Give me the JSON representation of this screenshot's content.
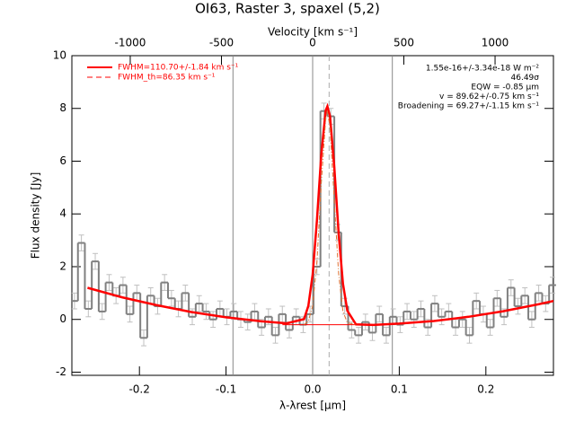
{
  "chart_data": {
    "type": "step",
    "title": "OI63, Raster 3, spaxel (5,2)",
    "top_axis_label": "Velocity [km s⁻¹]",
    "xlabel": "λ-λrest [µm]",
    "ylabel": "Flux density [Jy]",
    "x": [
      -0.275,
      -0.267,
      -0.259,
      -0.251,
      -0.243,
      -0.235,
      -0.227,
      -0.219,
      -0.211,
      -0.203,
      -0.195,
      -0.187,
      -0.179,
      -0.171,
      -0.163,
      -0.155,
      -0.147,
      -0.139,
      -0.131,
      -0.123,
      -0.115,
      -0.107,
      -0.099,
      -0.091,
      -0.083,
      -0.075,
      -0.067,
      -0.059,
      -0.051,
      -0.043,
      -0.035,
      -0.027,
      -0.019,
      -0.011,
      -0.003,
      0.005,
      0.013,
      0.021,
      0.029,
      0.037,
      0.045,
      0.053,
      0.061,
      0.069,
      0.077,
      0.085,
      0.093,
      0.101,
      0.109,
      0.117,
      0.125,
      0.133,
      0.141,
      0.149,
      0.157,
      0.165,
      0.173,
      0.181,
      0.189,
      0.197,
      0.205,
      0.213,
      0.221,
      0.229,
      0.237,
      0.245,
      0.253,
      0.261,
      0.269,
      0.277
    ],
    "values": [
      0.7,
      2.9,
      0.4,
      2.2,
      0.3,
      1.4,
      0.9,
      1.3,
      0.2,
      1.0,
      -0.7,
      0.9,
      0.5,
      1.4,
      0.8,
      0.4,
      1.0,
      0.1,
      0.6,
      0.3,
      0.0,
      0.4,
      0.1,
      0.3,
      0.0,
      -0.1,
      0.3,
      -0.3,
      0.1,
      -0.6,
      0.2,
      -0.4,
      0.1,
      -0.2,
      0.2,
      2.0,
      7.9,
      7.7,
      3.3,
      0.5,
      -0.4,
      -0.6,
      -0.1,
      -0.5,
      0.2,
      -0.6,
      0.1,
      -0.2,
      0.3,
      0.0,
      0.4,
      -0.3,
      0.6,
      0.1,
      0.3,
      -0.3,
      0.0,
      -0.6,
      0.7,
      0.2,
      -0.3,
      0.8,
      0.1,
      1.2,
      0.5,
      0.9,
      0.0,
      1.0,
      0.6,
      1.3
    ],
    "error": 0.3,
    "color": "#808080",
    "error_color": "#c0c0c0",
    "xlim": [
      -0.278,
      0.278
    ],
    "xticks": [
      -0.2,
      -0.1,
      {
        "value": 0,
        "label": "0.0"
      },
      0.1,
      0.2
    ],
    "ylim": [
      -2.12,
      10
    ],
    "yticks": [
      -2,
      0,
      2,
      4,
      6,
      8,
      10
    ],
    "top_xlim": [
      -1320,
      1320
    ],
    "top_xticks": [
      -1000,
      -500,
      0,
      500,
      1000
    ],
    "fit": {
      "name": "FWHM=110.70+/-1.84 km s⁻¹",
      "color": "#ff0000",
      "x": [
        -0.26,
        -0.22,
        -0.18,
        -0.14,
        -0.1,
        -0.06,
        -0.03,
        -0.01,
        -0.005,
        0.0,
        0.005,
        0.01,
        0.015,
        0.017,
        0.02,
        0.025,
        0.03,
        0.035,
        0.04,
        0.05,
        0.07,
        0.1,
        0.14,
        0.18,
        0.22,
        0.26,
        0.278
      ],
      "values": [
        1.2,
        0.84,
        0.54,
        0.28,
        0.08,
        -0.07,
        -0.15,
        0.01,
        0.51,
        1.7,
        3.77,
        6.25,
        7.92,
        8.08,
        7.71,
        5.77,
        3.28,
        1.36,
        0.33,
        -0.19,
        -0.21,
        -0.16,
        -0.06,
        0.1,
        0.31,
        0.57,
        0.7
      ]
    },
    "fit_th": {
      "name": "FWHM_th=86.35 km s⁻¹",
      "color": "#e07030",
      "x": [
        -0.01,
        -0.005,
        0.0,
        0.005,
        0.01,
        0.015,
        0.017,
        0.02,
        0.025,
        0.03,
        0.035,
        0.04,
        0.05
      ],
      "values": [
        -0.2,
        -0.06,
        0.51,
        2.2,
        5.15,
        7.62,
        7.9,
        7.3,
        4.5,
        1.73,
        0.31,
        -0.13,
        -0.2
      ]
    },
    "baseline": {
      "color": "#ff0000",
      "x": [
        -0.035,
        0.06
      ],
      "values": [
        -0.2,
        -0.2
      ]
    },
    "vlines": [
      -0.092,
      0,
      0.092
    ],
    "center_line": 0.019,
    "annotations": [
      "1.55e-16+/-3.34e-18 W m⁻²",
      "46.49σ",
      "EQW = -0.85 µm",
      "v = 89.62+/-0.75 km s⁻¹",
      "Broadening = 69.27+/-1.15 km s⁻¹"
    ]
  }
}
